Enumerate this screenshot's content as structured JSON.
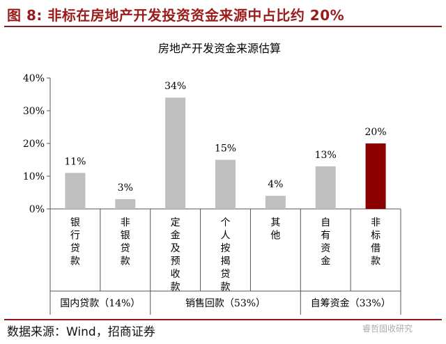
{
  "figure": {
    "title": "图 8:  非标在房地产开发投资资金来源中占比约 20%",
    "source": "数据来源：Wind，招商证券",
    "watermark": "睿哲固收研究"
  },
  "chart_data": {
    "type": "bar",
    "title": "房地产开发资金来源估算",
    "categories": [
      "银行贷款",
      "非银贷款",
      "定金及预收款",
      "个人按揭贷款",
      "其他",
      "自有资金",
      "非标借款"
    ],
    "values": [
      11,
      3,
      34,
      15,
      4,
      13,
      20
    ],
    "value_labels": [
      "11%",
      "3%",
      "34%",
      "15%",
      "4%",
      "13%",
      "20%"
    ],
    "yticks": [
      "0%",
      "10%",
      "20%",
      "30%",
      "40%"
    ],
    "ylim": [
      0,
      40
    ],
    "groups": [
      {
        "label": "国内贷款（14%）",
        "from": 0,
        "to": 1
      },
      {
        "label": "销售回款（53%）",
        "from": 2,
        "to": 4
      },
      {
        "label": "自筹资金（33%）",
        "from": 5,
        "to": 6
      }
    ],
    "colors": {
      "default": "#bfbfbf",
      "highlight": "#8b0000",
      "highlight_index": 6
    },
    "grid": false
  }
}
